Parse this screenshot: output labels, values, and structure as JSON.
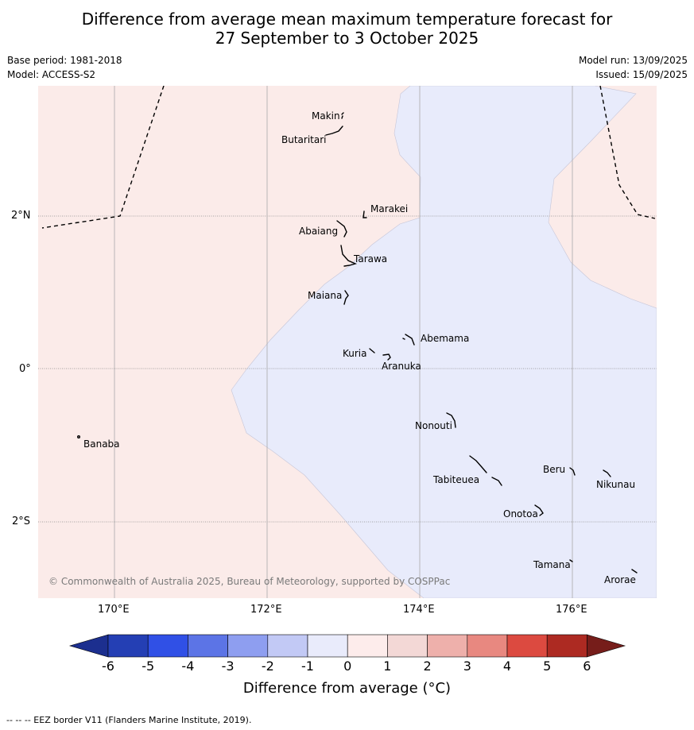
{
  "title": {
    "line1": "Difference from average mean maximum temperature forecast for",
    "line2": "27 September to 3 October 2025"
  },
  "info": {
    "base_period": "Base period: 1981-2018",
    "model": "Model: ACCESS-S2",
    "model_run": "Model run: 13/09/2025",
    "issued": "Issued: 15/09/2025"
  },
  "map": {
    "lat_labels": [
      "2°N",
      "0°",
      "2°S"
    ],
    "lon_labels": [
      "170°E",
      "172°E",
      "174°E",
      "176°E"
    ],
    "islands": [
      "Makin",
      "Butaritari",
      "Marakei",
      "Abaiang",
      "Tarawa",
      "Maiana",
      "Abemama",
      "Kuria",
      "Aranuka",
      "Banaba",
      "Nonouti",
      "Beru",
      "Nikunau",
      "Tabiteuea",
      "Onotoa",
      "Tamana",
      "Arorae"
    ],
    "credit": "© Commonwealth of Australia 2025, Bureau of Meteorology, supported by COSPPac",
    "colors": {
      "warm_region": "#fbebe9",
      "cool_region": "#e8ebfb"
    }
  },
  "colorbar": {
    "ticks": [
      "-6",
      "-5",
      "-4",
      "-3",
      "-2",
      "-1",
      "0",
      "1",
      "2",
      "3",
      "4",
      "5",
      "6"
    ],
    "colors": [
      "#1c2f8f",
      "#243fb4",
      "#3050e6",
      "#5c74e6",
      "#8e9ef0",
      "#c2c9f5",
      "#e9ebfb",
      "#fdeceb",
      "#f3d8d6",
      "#eeb0ab",
      "#e88880",
      "#dc4a40",
      "#ad2a22",
      "#761d1a"
    ],
    "label": "Difference from average (°C)"
  },
  "footer": "--  --  -- EEZ border V11 (Flanders Marine Institute, 2019)."
}
